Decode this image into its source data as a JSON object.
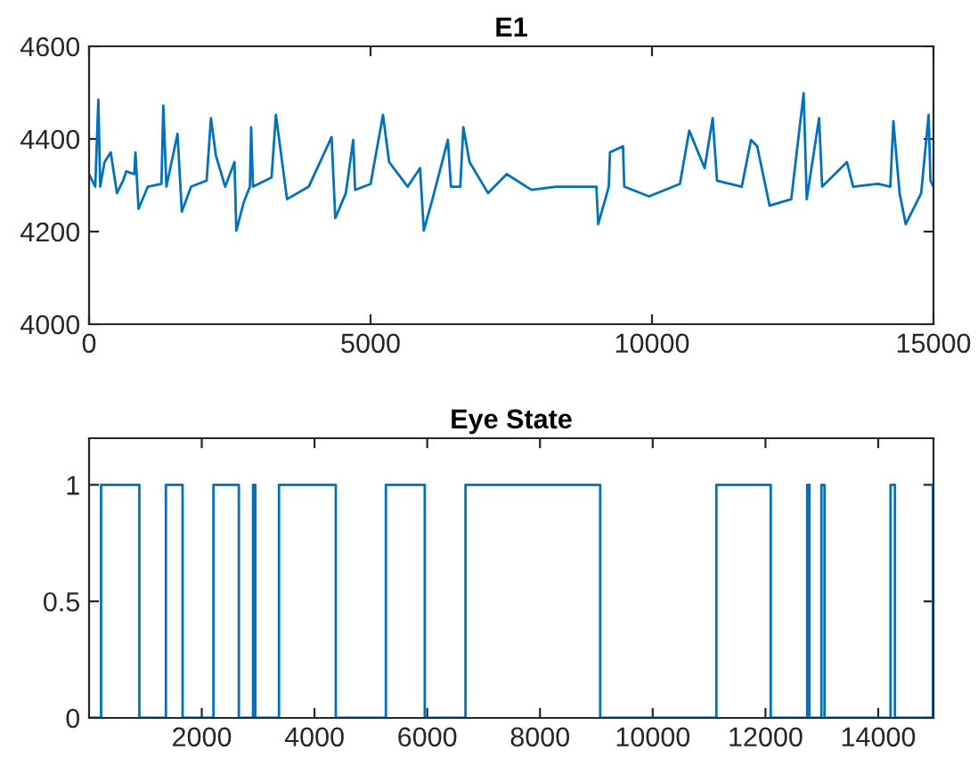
{
  "chart_data": [
    {
      "type": "line",
      "title": "E1",
      "xlim": [
        0,
        15000
      ],
      "xticks": [
        0,
        5000,
        10000,
        15000
      ],
      "ylim": [
        4000,
        4600
      ],
      "yticks": [
        4000,
        4200,
        4400,
        4600
      ],
      "grid": false,
      "legend": false,
      "series": [
        {
          "color": "#0072bd",
          "x": [
            0,
            110,
            165,
            198,
            275,
            385,
            495,
            604,
            660,
            802,
            824,
            879,
            1044,
            1286,
            1319,
            1374,
            1571,
            1648,
            1813,
            2088,
            2165,
            2253,
            2418,
            2583,
            2616,
            2747,
            2857,
            2879,
            2912,
            3242,
            3319,
            3517,
            3902,
            4308,
            4374,
            4561,
            4693,
            4726,
            5001,
            5221,
            5331,
            5660,
            5880,
            5946,
            6100,
            6374,
            6429,
            6594,
            6649,
            6759,
            7088,
            7418,
            7858,
            8297,
            9012,
            9045,
            9232,
            9254,
            9485,
            9507,
            9946,
            10496,
            10661,
            10935,
            11078,
            11155,
            11595,
            11759,
            11869,
            12089,
            12474,
            12694,
            12749,
            12968,
            13023,
            13463,
            13573,
            14013,
            14233,
            14288,
            14398,
            14507,
            14782,
            14914,
            14947,
            15000
          ],
          "values": [
            4324,
            4297,
            4485,
            4297,
            4350,
            4371,
            4283,
            4310,
            4330,
            4324,
            4371,
            4249,
            4297,
            4303,
            4472,
            4297,
            4411,
            4243,
            4297,
            4310,
            4445,
            4364,
            4297,
            4350,
            4202,
            4263,
            4297,
            4425,
            4297,
            4317,
            4452,
            4270,
            4297,
            4404,
            4229,
            4283,
            4398,
            4290,
            4303,
            4452,
            4350,
            4297,
            4337,
            4202,
            4270,
            4398,
            4297,
            4297,
            4425,
            4350,
            4283,
            4324,
            4290,
            4297,
            4297,
            4216,
            4297,
            4371,
            4384,
            4297,
            4276,
            4303,
            4418,
            4337,
            4445,
            4310,
            4297,
            4398,
            4384,
            4256,
            4270,
            4499,
            4270,
            4445,
            4297,
            4350,
            4297,
            4303,
            4297,
            4438,
            4283,
            4216,
            4283,
            4452,
            4310,
            4297
          ]
        }
      ]
    },
    {
      "type": "step",
      "title": "Eye State",
      "xlim": [
        1,
        14980
      ],
      "xticks": [
        2000,
        4000,
        6000,
        8000,
        10000,
        12000,
        14000
      ],
      "ylim": [
        0,
        1.2
      ],
      "yticks": [
        0,
        0.5,
        1
      ],
      "grid": false,
      "legend": false,
      "series": [
        {
          "color": "#0072bd",
          "x": [
            1,
            214,
            893,
            1364,
            1660,
            2208,
            2658,
            2910,
            2950,
            3370,
            4378,
            5266,
            5956,
            6679,
            9068,
            11129,
            12093,
            12740,
            12780,
            12992,
            13047,
            14219,
            14296,
            14970,
            14980
          ],
          "values": [
            0,
            1,
            0,
            1,
            0,
            1,
            0,
            1,
            0,
            1,
            0,
            1,
            0,
            1,
            0,
            1,
            0,
            1,
            0,
            1,
            0,
            1,
            0,
            1,
            1
          ]
        }
      ]
    }
  ]
}
